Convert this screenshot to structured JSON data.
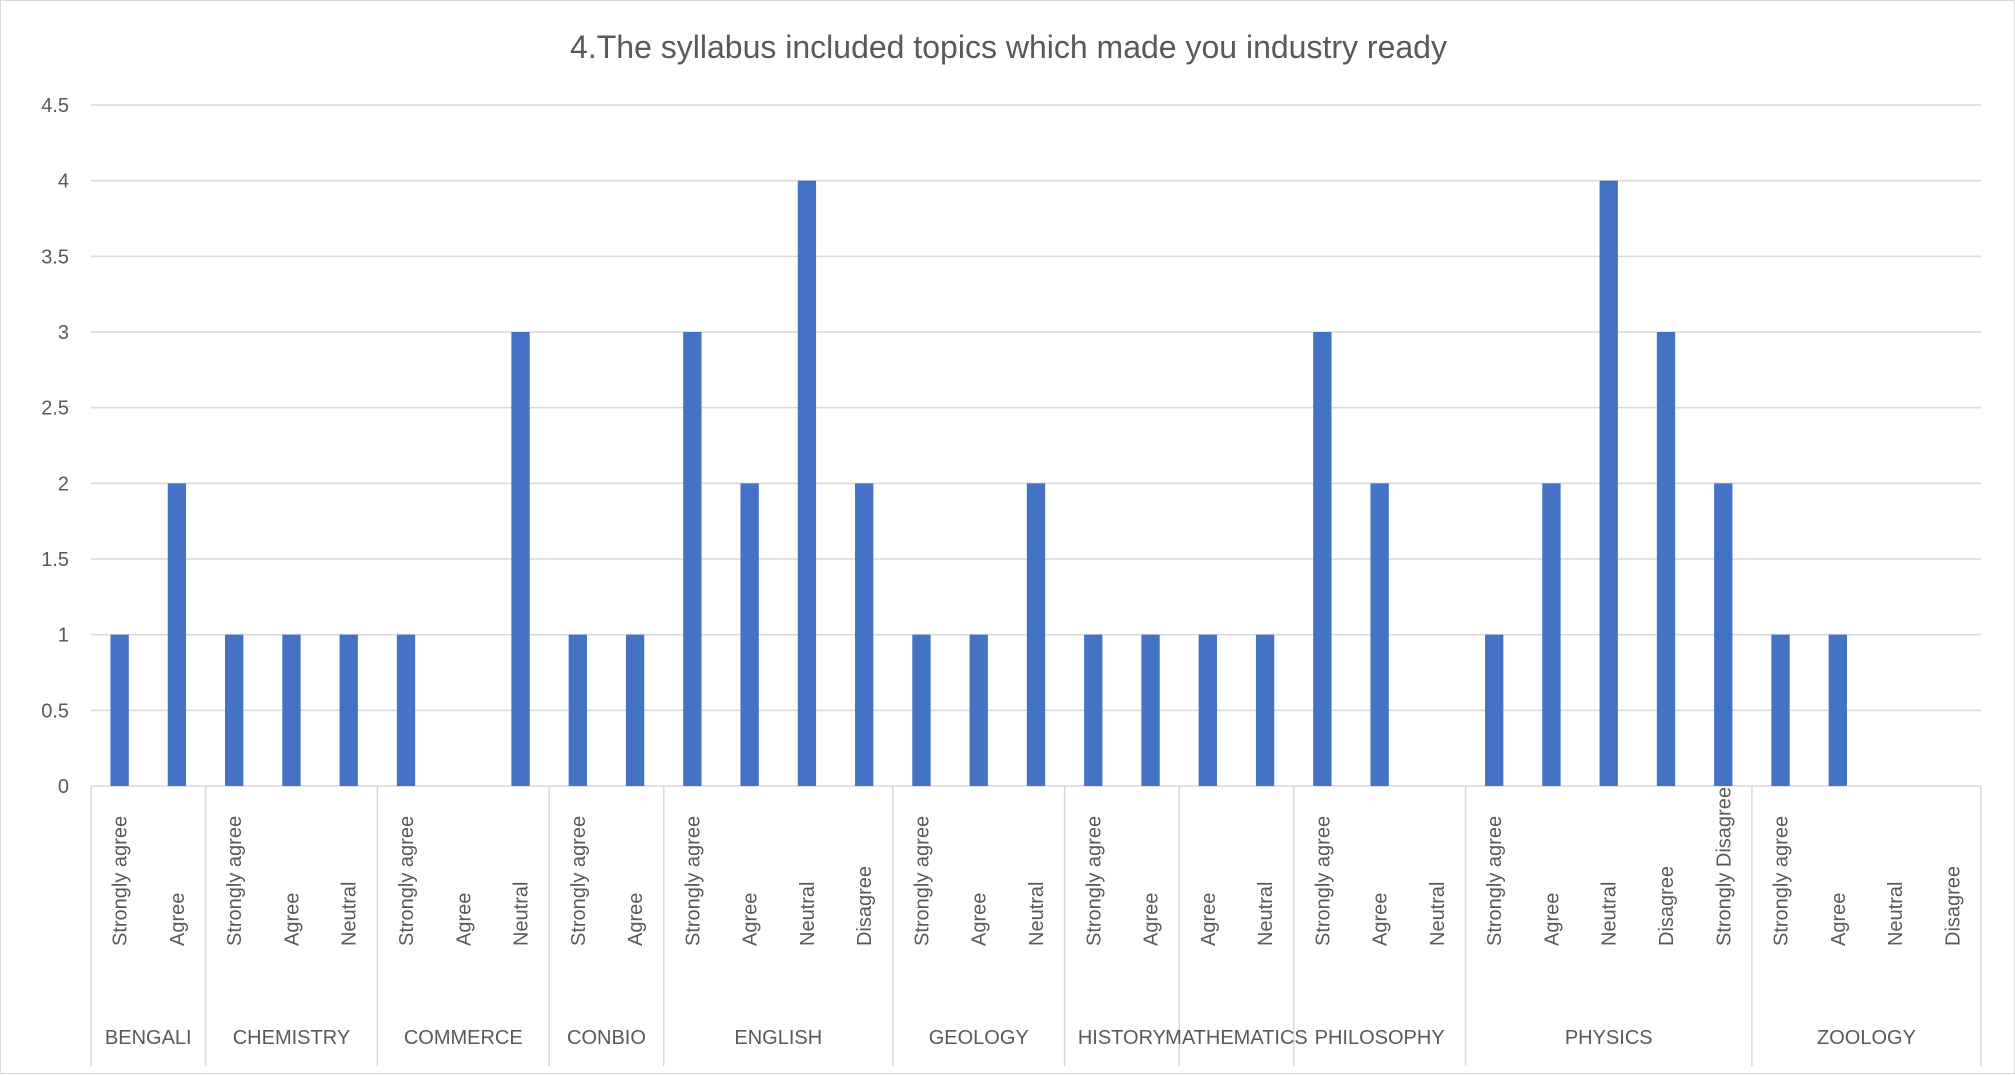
{
  "chart_data": {
    "type": "bar",
    "title": "4.The syllabus included topics which made you industry ready",
    "xlabel": "",
    "ylabel": "",
    "ylim": [
      0,
      4.5
    ],
    "yticks": [
      "0",
      "0.5",
      "1",
      "1.5",
      "2",
      "2.5",
      "3",
      "3.5",
      "4",
      "4.5"
    ],
    "grid": true,
    "legend": "none",
    "bar_color": "#4472C4",
    "groups": [
      {
        "name": "BENGALI",
        "categories": [
          "Strongly agree",
          "Agree"
        ],
        "values": [
          1,
          2
        ]
      },
      {
        "name": "CHEMISTRY",
        "categories": [
          "Strongly agree",
          "Agree",
          "Neutral"
        ],
        "values": [
          1,
          1,
          1
        ]
      },
      {
        "name": "COMMERCE",
        "categories": [
          "Strongly agree",
          "Agree",
          "Neutral"
        ],
        "values": [
          1,
          0,
          3
        ]
      },
      {
        "name": "CONBIO",
        "categories": [
          "Strongly agree",
          "Agree"
        ],
        "values": [
          1,
          1
        ]
      },
      {
        "name": "ENGLISH",
        "categories": [
          "Strongly agree",
          "Agree",
          "Neutral",
          "Disagree"
        ],
        "values": [
          3,
          2,
          4,
          2
        ]
      },
      {
        "name": "GEOLOGY",
        "categories": [
          "Strongly agree",
          "Agree",
          "Neutral"
        ],
        "values": [
          1,
          1,
          2
        ]
      },
      {
        "name": "HISTORY",
        "categories": [
          "Strongly agree",
          "Agree"
        ],
        "values": [
          1,
          1
        ]
      },
      {
        "name": "MATHEMATICS",
        "categories": [
          "Agree",
          "Neutral"
        ],
        "values": [
          1,
          1
        ]
      },
      {
        "name": "PHILOSOPHY",
        "categories": [
          "Strongly agree",
          "Agree",
          "Neutral"
        ],
        "values": [
          3,
          2,
          0
        ]
      },
      {
        "name": "PHYSICS",
        "categories": [
          "Strongly agree",
          "Agree",
          "Neutral",
          "Disagree",
          "Strongly Disagree"
        ],
        "values": [
          1,
          2,
          4,
          3,
          2
        ]
      },
      {
        "name": "ZOOLOGY",
        "categories": [
          "Strongly agree",
          "Agree",
          "Neutral",
          "Disagree"
        ],
        "values": [
          1,
          1,
          0,
          0
        ]
      }
    ]
  }
}
